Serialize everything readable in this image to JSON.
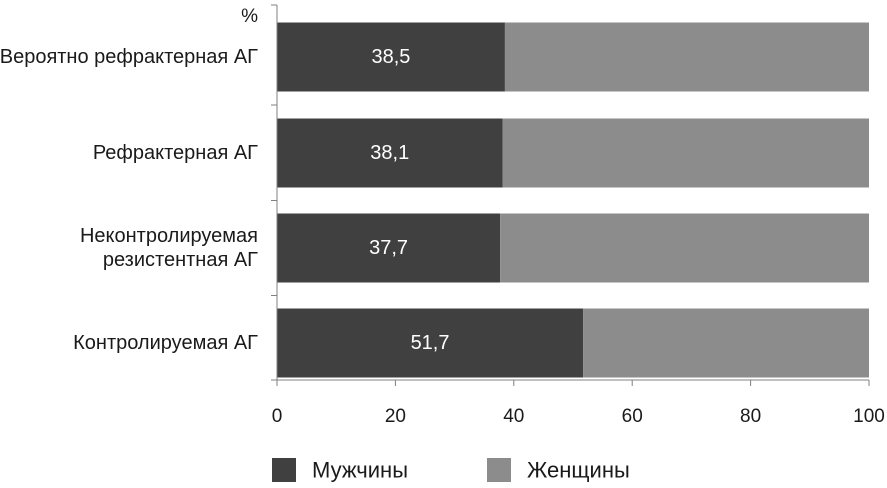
{
  "chart_data": {
    "type": "bar",
    "orientation": "horizontal",
    "stacked": true,
    "unit_label": "%",
    "categories": [
      [
        "Вероятно рефрактерная АГ"
      ],
      [
        "Рефрактерная АГ"
      ],
      [
        "Неконтролируемая",
        "резистентная АГ"
      ],
      [
        "Контролируемая АГ"
      ]
    ],
    "series": [
      {
        "name": "Мужчины",
        "values": [
          38.5,
          38.1,
          37.7,
          51.7
        ],
        "data_labels": [
          "38,5",
          "38,1",
          "37,7",
          "51,7"
        ]
      },
      {
        "name": "Женщины",
        "values": [
          61.5,
          61.9,
          62.3,
          48.3
        ]
      }
    ],
    "xlim": [
      0,
      100
    ],
    "xticks": [
      0,
      20,
      40,
      60,
      80,
      100
    ],
    "grid": false,
    "legend_position": "bottom",
    "colors": {
      "Мужчины": "#404040",
      "Женщины": "#8c8c8c"
    }
  }
}
